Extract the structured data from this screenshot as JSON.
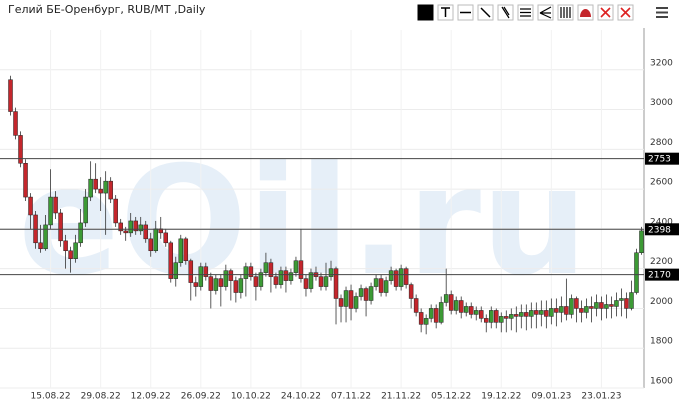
{
  "chart_data": {
    "type": "candlestick",
    "title": "Гелий БЕ-Оренбург, RUB/MT ,Daily",
    "watermark": "eOil.ru",
    "categories": [
      null,
      null,
      null,
      null,
      null,
      null,
      null,
      null,
      "15.08.22",
      null,
      null,
      null,
      null,
      null,
      null,
      null,
      null,
      null,
      "29.08.22",
      null,
      null,
      null,
      null,
      null,
      null,
      null,
      null,
      null,
      "12.09.22",
      null,
      null,
      null,
      null,
      null,
      null,
      null,
      null,
      null,
      "26.09.22",
      null,
      null,
      null,
      null,
      null,
      null,
      null,
      null,
      null,
      "10.10.22",
      null,
      null,
      null,
      null,
      null,
      null,
      null,
      null,
      null,
      "24.10.22",
      null,
      null,
      null,
      null,
      null,
      null,
      null,
      null,
      null,
      "07.11.22",
      null,
      null,
      null,
      null,
      null,
      null,
      null,
      null,
      null,
      "21.11.22",
      null,
      null,
      null,
      null,
      null,
      null,
      null,
      null,
      null,
      "05.12.22",
      null,
      null,
      null,
      null,
      null,
      null,
      null,
      null,
      null,
      "19.12.22",
      null,
      null,
      null,
      null,
      null,
      null,
      null,
      null,
      null,
      "09.01.23",
      null,
      null,
      null,
      null,
      null,
      null,
      null,
      null,
      null,
      "23.01.23",
      null,
      null,
      null,
      null,
      null,
      null,
      null,
      null
    ],
    "open": [
      3150,
      2990,
      2870,
      2730,
      2560,
      2470,
      2330,
      2300,
      2420,
      2560,
      2480,
      2340,
      2290,
      2250,
      2330,
      2430,
      2560,
      2650,
      2600,
      2580,
      2640,
      2550,
      2430,
      2390,
      2380,
      2440,
      2390,
      2420,
      2350,
      2290,
      2400,
      2380,
      2330,
      2150,
      2230,
      2350,
      2240,
      2130,
      2110,
      2210,
      2160,
      2090,
      2150,
      2110,
      2190,
      2140,
      2080,
      2150,
      2210,
      2160,
      2110,
      2180,
      2230,
      2160,
      2120,
      2190,
      2140,
      2180,
      2240,
      2150,
      2100,
      2180,
      2160,
      2110,
      2160,
      2200,
      2050,
      2010,
      2090,
      2000,
      2060,
      2100,
      2040,
      2110,
      2150,
      2080,
      2140,
      2190,
      2110,
      2200,
      2120,
      2050,
      1980,
      1920,
      1950,
      2000,
      1930,
      2030,
      2070,
      1990,
      2040,
      1980,
      2010,
      1970,
      1990,
      1950,
      1930,
      1990,
      1930,
      1960,
      1950,
      1970,
      1960,
      1980,
      1960,
      1990,
      1970,
      1990,
      1960,
      2000,
      1980,
      2010,
      1970,
      2050,
      2000,
      1980,
      2010,
      2000,
      2030,
      2000,
      2020,
      2010,
      2040,
      2050,
      2000,
      2080,
      2280
    ],
    "high": [
      3170,
      3010,
      2890,
      2750,
      2580,
      2490,
      2420,
      2470,
      2700,
      2590,
      2500,
      2370,
      2310,
      2370,
      2500,
      2600,
      2740,
      2730,
      2660,
      2690,
      2660,
      2570,
      2450,
      2410,
      2480,
      2460,
      2460,
      2440,
      2380,
      2440,
      2460,
      2400,
      2340,
      2260,
      2370,
      2360,
      2250,
      2160,
      2230,
      2230,
      2180,
      2170,
      2170,
      2220,
      2200,
      2160,
      2170,
      2230,
      2230,
      2180,
      2200,
      2280,
      2250,
      2180,
      2210,
      2210,
      2200,
      2260,
      2400,
      2170,
      2200,
      2210,
      2180,
      2230,
      2240,
      2210,
      2070,
      2110,
      2120,
      2080,
      2120,
      2110,
      2130,
      2170,
      2170,
      2160,
      2210,
      2200,
      2220,
      2210,
      2130,
      2070,
      2000,
      1970,
      2020,
      2020,
      2060,
      2200,
      2090,
      2060,
      2060,
      2030,
      2030,
      2010,
      2010,
      1970,
      2010,
      2000,
      1980,
      1990,
      2000,
      2010,
      2020,
      2020,
      2030,
      2030,
      2040,
      2040,
      2050,
      2050,
      2060,
      2150,
      2070,
      2060,
      2040,
      2050,
      2060,
      2070,
      2060,
      2070,
      2060,
      2080,
      2100,
      2080,
      2140,
      2300,
      2410
    ],
    "low": [
      2970,
      2850,
      2710,
      2540,
      2400,
      2300,
      2280,
      2290,
      2400,
      2450,
      2310,
      2200,
      2180,
      2230,
      2310,
      2410,
      2540,
      2580,
      2490,
      2370,
      2530,
      2410,
      2370,
      2340,
      2360,
      2370,
      2370,
      2330,
      2260,
      2280,
      2350,
      2310,
      2130,
      2110,
      2210,
      2220,
      2040,
      2060,
      2090,
      2140,
      2000,
      2070,
      2010,
      2090,
      2040,
      2030,
      2050,
      2060,
      2140,
      2040,
      2090,
      2160,
      2080,
      2100,
      2100,
      2080,
      2120,
      2160,
      2130,
      2060,
      2080,
      2140,
      2090,
      2090,
      2140,
      1920,
      1930,
      1930,
      1940,
      1980,
      2040,
      1960,
      2020,
      2090,
      2060,
      2060,
      2120,
      2090,
      2090,
      2100,
      2000,
      1960,
      1880,
      1870,
      1930,
      1900,
      1920,
      2010,
      1970,
      1970,
      1950,
      1960,
      1950,
      1940,
      1930,
      1880,
      1900,
      1900,
      1880,
      1880,
      1890,
      1880,
      1900,
      1890,
      1900,
      1900,
      1910,
      1900,
      1920,
      1910,
      1930,
      1940,
      1950,
      1930,
      1930,
      1950,
      1930,
      1960,
      1940,
      1950,
      1950,
      1960,
      1960,
      1950,
      1990,
      2070,
      2270
    ],
    "close": [
      2990,
      2870,
      2730,
      2560,
      2470,
      2330,
      2300,
      2420,
      2560,
      2480,
      2340,
      2290,
      2250,
      2330,
      2430,
      2560,
      2650,
      2600,
      2580,
      2640,
      2550,
      2430,
      2390,
      2380,
      2440,
      2390,
      2420,
      2350,
      2290,
      2400,
      2380,
      2330,
      2150,
      2230,
      2350,
      2240,
      2130,
      2110,
      2210,
      2160,
      2090,
      2150,
      2110,
      2190,
      2140,
      2080,
      2150,
      2210,
      2160,
      2110,
      2180,
      2230,
      2160,
      2120,
      2190,
      2140,
      2180,
      2240,
      2150,
      2100,
      2180,
      2160,
      2110,
      2160,
      2200,
      2050,
      2010,
      2090,
      2000,
      2060,
      2100,
      2040,
      2110,
      2150,
      2080,
      2140,
      2190,
      2110,
      2200,
      2120,
      2050,
      1980,
      1920,
      1950,
      2000,
      1930,
      2030,
      2070,
      1990,
      2040,
      1980,
      2010,
      1970,
      1990,
      1950,
      1930,
      1990,
      1930,
      1960,
      1950,
      1970,
      1960,
      1980,
      1960,
      1990,
      1970,
      1990,
      1960,
      2000,
      1980,
      2010,
      1970,
      2050,
      2000,
      1980,
      2010,
      2000,
      2030,
      2000,
      2020,
      2010,
      2040,
      2050,
      2000,
      2080,
      2280,
      2390
    ],
    "up_color": "#3c9a35",
    "down_color": "#c4262c",
    "ylim": [
      1600,
      3400
    ],
    "yticks": [
      1600,
      1800,
      2000,
      2200,
      2400,
      2600,
      2800,
      3000,
      3200
    ],
    "grid": true,
    "levels": [
      2753,
      2398,
      2170
    ]
  }
}
